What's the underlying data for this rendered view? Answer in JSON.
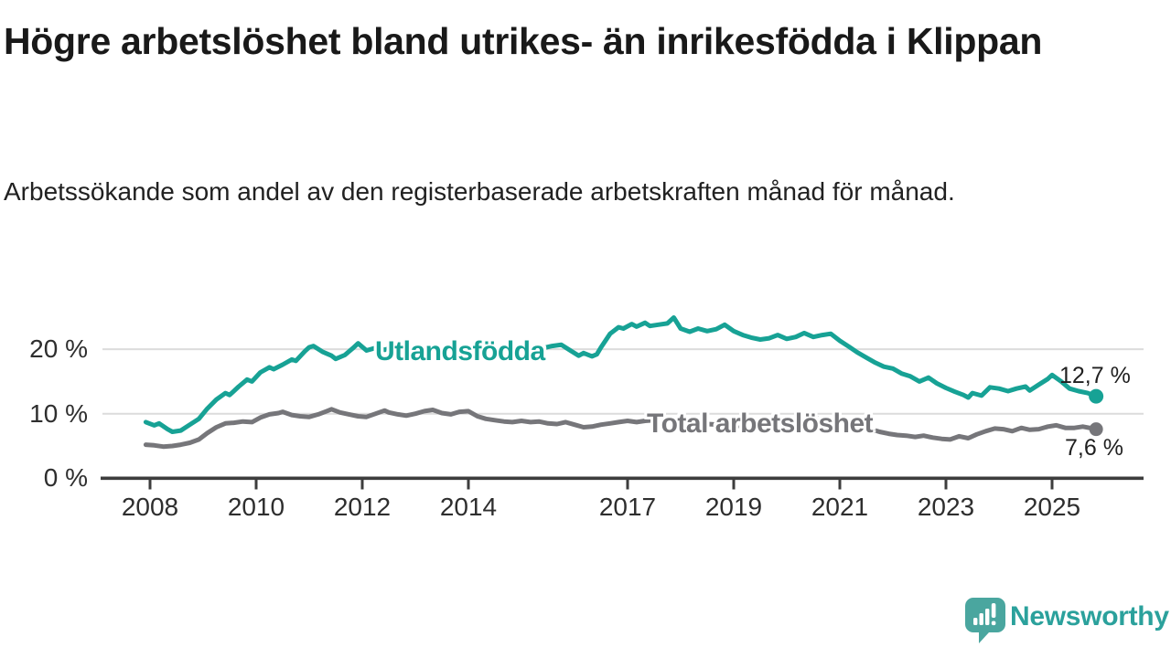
{
  "header": {
    "title": "Högre arbetslöshet bland utrikes- än inrikesfödda i Klippan",
    "subtitle": "Arbetssökande som andel av den registerbaserade arbetskraften månad för månad."
  },
  "branding": {
    "logo_text": "Newsworthy",
    "logo_icon": "bar-chart-speech-bubble-icon",
    "brand_color": "#2ba19c"
  },
  "colors": {
    "series_utlandsfodda": "#17a295",
    "series_total": "#76767a",
    "axis": "#3d3d3d",
    "gridline": "#dcdcdc",
    "text": "#1f1f1f"
  },
  "chart_data": {
    "type": "line",
    "title": "Högre arbetslöshet bland utrikes- än inrikesfödda i Klippan",
    "subtitle": "Arbetssökande som andel av den registerbaserade arbetskraften månad för månad.",
    "x_unit": "year",
    "xlim": [
      2007.75,
      2026.6
    ],
    "ylim": [
      0,
      27
    ],
    "grid": "horizontal-only",
    "legend_position": "inline-on-line",
    "y_ticks": [
      0,
      10,
      20
    ],
    "y_tick_labels": [
      "0 %",
      "10 %",
      "20 %"
    ],
    "x_ticks": [
      2008,
      2010,
      2012,
      2014,
      2017,
      2019,
      2021,
      2023,
      2025
    ],
    "x_tick_labels": [
      "2008",
      "2010",
      "2012",
      "2014",
      "2017",
      "2019",
      "2021",
      "2023",
      "2025"
    ],
    "series": [
      {
        "name": "Total arbetslöshet",
        "color": "#76767a",
        "end_label": "7,6 %",
        "end_value": 7.6,
        "points": [
          [
            2007.92,
            5.2
          ],
          [
            2008.08,
            5.1
          ],
          [
            2008.25,
            4.9
          ],
          [
            2008.42,
            5.0
          ],
          [
            2008.58,
            5.2
          ],
          [
            2008.75,
            5.5
          ],
          [
            2008.92,
            6.0
          ],
          [
            2009.08,
            7.0
          ],
          [
            2009.25,
            7.9
          ],
          [
            2009.42,
            8.5
          ],
          [
            2009.58,
            8.6
          ],
          [
            2009.75,
            8.8
          ],
          [
            2009.92,
            8.7
          ],
          [
            2010.08,
            9.4
          ],
          [
            2010.25,
            9.9
          ],
          [
            2010.42,
            10.1
          ],
          [
            2010.5,
            10.3
          ],
          [
            2010.67,
            9.8
          ],
          [
            2010.83,
            9.6
          ],
          [
            2011.0,
            9.5
          ],
          [
            2011.17,
            9.9
          ],
          [
            2011.33,
            10.4
          ],
          [
            2011.42,
            10.7
          ],
          [
            2011.58,
            10.2
          ],
          [
            2011.75,
            9.9
          ],
          [
            2011.92,
            9.6
          ],
          [
            2012.08,
            9.5
          ],
          [
            2012.25,
            10.0
          ],
          [
            2012.42,
            10.5
          ],
          [
            2012.5,
            10.2
          ],
          [
            2012.67,
            9.9
          ],
          [
            2012.83,
            9.7
          ],
          [
            2013.0,
            10.0
          ],
          [
            2013.17,
            10.4
          ],
          [
            2013.33,
            10.6
          ],
          [
            2013.5,
            10.1
          ],
          [
            2013.67,
            9.9
          ],
          [
            2013.83,
            10.3
          ],
          [
            2014.0,
            10.4
          ],
          [
            2014.17,
            9.6
          ],
          [
            2014.33,
            9.2
          ],
          [
            2014.5,
            9.0
          ],
          [
            2014.67,
            8.8
          ],
          [
            2014.83,
            8.7
          ],
          [
            2015.0,
            8.9
          ],
          [
            2015.17,
            8.7
          ],
          [
            2015.33,
            8.8
          ],
          [
            2015.5,
            8.5
          ],
          [
            2015.67,
            8.4
          ],
          [
            2015.83,
            8.7
          ],
          [
            2016.0,
            8.3
          ],
          [
            2016.17,
            7.9
          ],
          [
            2016.33,
            8.0
          ],
          [
            2016.5,
            8.3
          ],
          [
            2016.67,
            8.5
          ],
          [
            2016.83,
            8.7
          ],
          [
            2017.0,
            8.9
          ],
          [
            2017.17,
            8.7
          ],
          [
            2017.33,
            8.9
          ],
          [
            2017.5,
            9.0
          ],
          [
            2017.67,
            8.9
          ],
          [
            2017.83,
            8.8
          ],
          [
            2018.0,
            8.7
          ],
          [
            2018.25,
            8.5
          ],
          [
            2018.5,
            8.4
          ],
          [
            2018.75,
            8.3
          ],
          [
            2019.0,
            8.2
          ],
          [
            2019.25,
            8.0
          ],
          [
            2019.5,
            7.9
          ],
          [
            2019.75,
            8.0
          ],
          [
            2020.0,
            8.3
          ],
          [
            2020.25,
            9.0
          ],
          [
            2020.5,
            9.3
          ],
          [
            2020.75,
            9.1
          ],
          [
            2021.0,
            8.8
          ],
          [
            2021.25,
            8.3
          ],
          [
            2021.5,
            7.8
          ],
          [
            2021.75,
            7.2
          ],
          [
            2021.92,
            6.9
          ],
          [
            2022.08,
            6.7
          ],
          [
            2022.25,
            6.6
          ],
          [
            2022.42,
            6.4
          ],
          [
            2022.58,
            6.6
          ],
          [
            2022.75,
            6.3
          ],
          [
            2022.92,
            6.1
          ],
          [
            2023.08,
            6.0
          ],
          [
            2023.25,
            6.5
          ],
          [
            2023.42,
            6.2
          ],
          [
            2023.58,
            6.8
          ],
          [
            2023.75,
            7.3
          ],
          [
            2023.92,
            7.7
          ],
          [
            2024.08,
            7.6
          ],
          [
            2024.25,
            7.3
          ],
          [
            2024.42,
            7.8
          ],
          [
            2024.58,
            7.5
          ],
          [
            2024.75,
            7.6
          ],
          [
            2024.92,
            8.0
          ],
          [
            2025.08,
            8.2
          ],
          [
            2025.25,
            7.8
          ],
          [
            2025.42,
            7.8
          ],
          [
            2025.58,
            8.0
          ],
          [
            2025.83,
            7.6
          ]
        ]
      },
      {
        "name": "Utlandsfödda",
        "color": "#17a295",
        "end_label": "12,7 %",
        "end_value": 12.7,
        "points": [
          [
            2007.92,
            8.7
          ],
          [
            2008.08,
            8.2
          ],
          [
            2008.17,
            8.5
          ],
          [
            2008.33,
            7.6
          ],
          [
            2008.42,
            7.2
          ],
          [
            2008.58,
            7.4
          ],
          [
            2008.75,
            8.3
          ],
          [
            2008.92,
            9.2
          ],
          [
            2009.08,
            10.8
          ],
          [
            2009.25,
            12.2
          ],
          [
            2009.42,
            13.2
          ],
          [
            2009.5,
            12.9
          ],
          [
            2009.67,
            14.2
          ],
          [
            2009.83,
            15.3
          ],
          [
            2009.92,
            15.0
          ],
          [
            2010.08,
            16.4
          ],
          [
            2010.25,
            17.2
          ],
          [
            2010.33,
            16.9
          ],
          [
            2010.5,
            17.6
          ],
          [
            2010.67,
            18.4
          ],
          [
            2010.75,
            18.2
          ],
          [
            2010.92,
            19.7
          ],
          [
            2011.0,
            20.3
          ],
          [
            2011.08,
            20.5
          ],
          [
            2011.25,
            19.6
          ],
          [
            2011.42,
            19.0
          ],
          [
            2011.5,
            18.5
          ],
          [
            2011.67,
            19.1
          ],
          [
            2011.83,
            20.2
          ],
          [
            2011.92,
            20.9
          ],
          [
            2012.08,
            19.8
          ],
          [
            2012.25,
            20.2
          ],
          [
            2012.42,
            19.9
          ],
          [
            2012.58,
            20.3
          ],
          [
            2012.75,
            19.7
          ],
          [
            2012.92,
            19.9
          ],
          [
            2013.08,
            20.2
          ],
          [
            2013.25,
            19.8
          ],
          [
            2013.42,
            20.1
          ],
          [
            2013.58,
            19.7
          ],
          [
            2013.75,
            20.0
          ],
          [
            2013.92,
            20.4
          ],
          [
            2014.08,
            20.1
          ],
          [
            2014.25,
            19.8
          ],
          [
            2014.42,
            20.2
          ],
          [
            2014.58,
            19.9
          ],
          [
            2014.75,
            20.1
          ],
          [
            2014.92,
            20.4
          ],
          [
            2015.08,
            20.1
          ],
          [
            2015.25,
            20.4
          ],
          [
            2015.42,
            20.2
          ],
          [
            2015.58,
            20.5
          ],
          [
            2015.75,
            20.7
          ],
          [
            2015.92,
            19.8
          ],
          [
            2016.08,
            19.0
          ],
          [
            2016.17,
            19.4
          ],
          [
            2016.33,
            18.9
          ],
          [
            2016.42,
            19.2
          ],
          [
            2016.5,
            20.3
          ],
          [
            2016.67,
            22.4
          ],
          [
            2016.83,
            23.4
          ],
          [
            2016.92,
            23.2
          ],
          [
            2017.08,
            23.9
          ],
          [
            2017.17,
            23.5
          ],
          [
            2017.33,
            24.1
          ],
          [
            2017.42,
            23.6
          ],
          [
            2017.58,
            23.8
          ],
          [
            2017.75,
            24.0
          ],
          [
            2017.87,
            24.9
          ],
          [
            2018.0,
            23.2
          ],
          [
            2018.17,
            22.7
          ],
          [
            2018.33,
            23.2
          ],
          [
            2018.5,
            22.8
          ],
          [
            2018.67,
            23.1
          ],
          [
            2018.83,
            23.8
          ],
          [
            2019.0,
            22.8
          ],
          [
            2019.17,
            22.2
          ],
          [
            2019.33,
            21.8
          ],
          [
            2019.5,
            21.5
          ],
          [
            2019.67,
            21.7
          ],
          [
            2019.83,
            22.2
          ],
          [
            2020.0,
            21.6
          ],
          [
            2020.17,
            21.9
          ],
          [
            2020.33,
            22.5
          ],
          [
            2020.5,
            21.9
          ],
          [
            2020.67,
            22.2
          ],
          [
            2020.83,
            22.4
          ],
          [
            2021.0,
            21.3
          ],
          [
            2021.17,
            20.4
          ],
          [
            2021.33,
            19.5
          ],
          [
            2021.5,
            18.7
          ],
          [
            2021.67,
            17.9
          ],
          [
            2021.83,
            17.3
          ],
          [
            2022.0,
            17.0
          ],
          [
            2022.17,
            16.2
          ],
          [
            2022.33,
            15.8
          ],
          [
            2022.5,
            15.0
          ],
          [
            2022.67,
            15.6
          ],
          [
            2022.83,
            14.7
          ],
          [
            2023.0,
            14.0
          ],
          [
            2023.17,
            13.4
          ],
          [
            2023.33,
            12.9
          ],
          [
            2023.42,
            12.5
          ],
          [
            2023.5,
            13.2
          ],
          [
            2023.67,
            12.8
          ],
          [
            2023.83,
            14.1
          ],
          [
            2024.0,
            13.9
          ],
          [
            2024.17,
            13.5
          ],
          [
            2024.33,
            13.9
          ],
          [
            2024.5,
            14.2
          ],
          [
            2024.58,
            13.6
          ],
          [
            2024.75,
            14.5
          ],
          [
            2024.92,
            15.4
          ],
          [
            2025.0,
            16.0
          ],
          [
            2025.17,
            15.0
          ],
          [
            2025.33,
            13.9
          ],
          [
            2025.5,
            13.5
          ],
          [
            2025.67,
            13.2
          ],
          [
            2025.83,
            12.7
          ]
        ]
      }
    ]
  }
}
